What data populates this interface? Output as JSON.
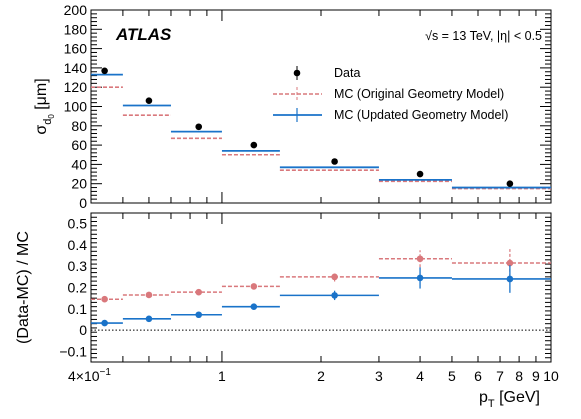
{
  "chart_data": {
    "type": "scatter",
    "experiment": "ATLAS",
    "annotation": "√s = 13 TeV,  |η| < 0.5",
    "xlabel": "p_T [GeV]",
    "xscale": "log",
    "xlim": [
      0.4,
      10
    ],
    "xtick_labels": [
      "4×10",
      "1",
      "2",
      "3",
      "4",
      "5",
      "6",
      "7",
      "8",
      "9",
      "10"
    ],
    "legend": {
      "placement": "top-right",
      "entries": [
        "Data",
        "MC (Original Geometry Model)",
        "MC (Updated Geometry Model)"
      ]
    },
    "colors": {
      "data": "#000000",
      "original": "#d9787c",
      "updated": "#1a73c9"
    },
    "bins": [
      {
        "low": 0.4,
        "high": 0.5
      },
      {
        "low": 0.5,
        "high": 0.7
      },
      {
        "low": 0.7,
        "high": 1.0
      },
      {
        "low": 1.0,
        "high": 1.5
      },
      {
        "low": 1.5,
        "high": 3.0
      },
      {
        "low": 3.0,
        "high": 5.0
      },
      {
        "low": 5.0,
        "high": 10.0
      }
    ],
    "top": {
      "ylabel": "σ_d0 [μm]",
      "ylim": [
        0,
        200
      ],
      "yticks": [
        0,
        20,
        40,
        60,
        80,
        100,
        120,
        140,
        160,
        180,
        200
      ],
      "series": [
        {
          "name": "Data",
          "x": [
            0.44,
            0.6,
            0.85,
            1.25,
            2.2,
            4.0,
            7.5
          ],
          "values": [
            137,
            106,
            79,
            60,
            43,
            30,
            20
          ]
        },
        {
          "name": "MC (Original Geometry Model)",
          "values": [
            120,
            91,
            67,
            50,
            34,
            22.5,
            15
          ]
        },
        {
          "name": "MC (Updated Geometry Model)",
          "values": [
            133,
            101,
            74,
            54,
            37,
            24,
            16
          ]
        }
      ]
    },
    "bottom": {
      "ylabel": "(Data-MC) / MC",
      "ylim": [
        -0.15,
        0.55
      ],
      "yticks": [
        -0.1,
        0,
        0.1,
        0.2,
        0.3,
        0.4,
        0.5
      ],
      "ytick_labels": [
        "−0.1",
        "0",
        "0.1",
        "0.2",
        "0.3",
        "0.4",
        "0.5"
      ],
      "series": [
        {
          "name": "MC (Original Geometry Model)",
          "x": [
            0.44,
            0.6,
            0.85,
            1.25,
            2.2,
            4.0,
            7.5
          ],
          "values": [
            0.145,
            0.165,
            0.178,
            0.205,
            0.25,
            0.335,
            0.315
          ],
          "errors": [
            0.012,
            0.012,
            0.012,
            0.012,
            0.022,
            0.04,
            0.065
          ]
        },
        {
          "name": "MC (Updated Geometry Model)",
          "x": [
            0.44,
            0.6,
            0.85,
            1.25,
            2.2,
            4.0,
            7.5
          ],
          "values": [
            0.033,
            0.053,
            0.072,
            0.11,
            0.163,
            0.245,
            0.24
          ],
          "errors": [
            0.01,
            0.01,
            0.01,
            0.012,
            0.022,
            0.05,
            0.065
          ]
        }
      ]
    }
  }
}
